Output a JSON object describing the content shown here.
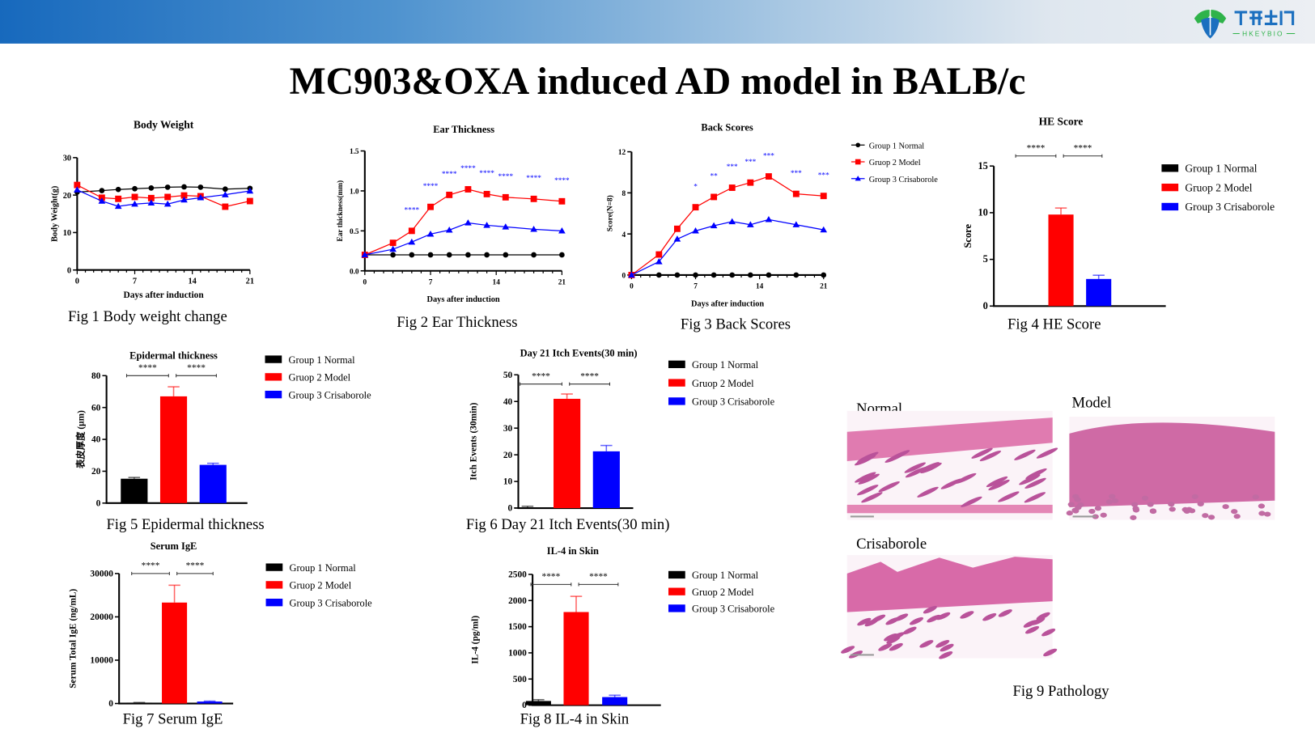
{
  "header": {
    "logo_text_cn": "禾开生物",
    "logo_text_en": "HKEYBIO",
    "gradient_colors": [
      "#1769bd",
      "#eceff3"
    ]
  },
  "slide_title": "MC903&OXA induced AD model in BALB/c",
  "groups": [
    "Group 1 Normal",
    "Gruop 2 Model",
    "Group 3 Crisaborole"
  ],
  "group_colors": [
    "#000000",
    "#ff0000",
    "#0000ff"
  ],
  "chart_data": [
    {
      "type": "line",
      "title": "Body Weight",
      "xlabel": "Days after induction",
      "ylabel": "Body Weight(g)",
      "xlim": [
        0,
        21
      ],
      "ylim": [
        0,
        30
      ],
      "xticks": [
        0,
        7,
        14,
        21
      ],
      "xtick_labels": [
        "0",
        "7",
        "14",
        "21"
      ],
      "yticks": [
        0,
        10,
        20,
        30
      ],
      "ytick_labels": [
        "0",
        "10",
        "20",
        "30"
      ],
      "x": [
        0,
        3,
        5,
        7,
        9,
        11,
        13,
        15,
        18,
        21
      ],
      "series": [
        {
          "name": "Group 1 Normal",
          "marker": "circle",
          "values": [
            20.8,
            21.2,
            21.5,
            21.7,
            21.9,
            22.1,
            22.2,
            22.1,
            21.6,
            21.8
          ]
        },
        {
          "name": "Gruop 2 Model",
          "marker": "square",
          "values": [
            22.7,
            19.3,
            19.0,
            19.5,
            19.2,
            19.5,
            19.9,
            19.7,
            16.9,
            18.4
          ]
        },
        {
          "name": "Group 3 Crisaborole",
          "marker": "triangle",
          "values": [
            21.4,
            18.4,
            17.0,
            17.6,
            17.9,
            17.6,
            18.7,
            19.3,
            20.1,
            21.1
          ]
        }
      ],
      "annotations": [],
      "legend": false,
      "caption": "Fig 1 Body  weight change"
    },
    {
      "type": "line",
      "title": "Ear Thickness",
      "xlabel": "Days after induction",
      "ylabel": "Ear thickness(mm)",
      "xlim": [
        0,
        21
      ],
      "ylim": [
        0,
        1.5
      ],
      "xticks": [
        0,
        7,
        14,
        21
      ],
      "xtick_labels": [
        "0",
        "7",
        "14",
        "21"
      ],
      "yticks": [
        0,
        0.5,
        1.0,
        1.5
      ],
      "ytick_labels": [
        "0.0",
        "0.5",
        "1.0",
        "1.5"
      ],
      "x": [
        0,
        3,
        5,
        7,
        9,
        11,
        13,
        15,
        18,
        21
      ],
      "series": [
        {
          "name": "Group 1 Normal",
          "marker": "circle",
          "values": [
            0.2,
            0.2,
            0.2,
            0.2,
            0.2,
            0.2,
            0.2,
            0.2,
            0.2,
            0.2
          ]
        },
        {
          "name": "Gruop 2 Model",
          "marker": "square",
          "values": [
            0.2,
            0.35,
            0.5,
            0.8,
            0.95,
            1.02,
            0.96,
            0.92,
            0.9,
            0.87
          ]
        },
        {
          "name": "Group 3 Crisaborole",
          "marker": "triangle",
          "values": [
            0.2,
            0.27,
            0.36,
            0.46,
            0.51,
            0.6,
            0.57,
            0.55,
            0.52,
            0.5
          ]
        }
      ],
      "annotations": [
        {
          "x": 5,
          "label": "****"
        },
        {
          "x": 7,
          "label": "****"
        },
        {
          "x": 9,
          "label": "****"
        },
        {
          "x": 11,
          "label": "****"
        },
        {
          "x": 13,
          "label": "****"
        },
        {
          "x": 15,
          "label": "****"
        },
        {
          "x": 18,
          "label": "****"
        },
        {
          "x": 21,
          "label": "****"
        }
      ],
      "legend": false,
      "caption": "Fig 2 Ear Thickness"
    },
    {
      "type": "line",
      "title": "Back Scores",
      "xlabel": "Days after induction",
      "ylabel": "Score(N=8)",
      "xlim": [
        0,
        21
      ],
      "ylim": [
        0,
        12
      ],
      "xticks": [
        0,
        7,
        14,
        21
      ],
      "xtick_labels": [
        "0",
        "7",
        "14",
        "21"
      ],
      "yticks": [
        0,
        4,
        8,
        12
      ],
      "ytick_labels": [
        "0",
        "4",
        "8",
        "12"
      ],
      "x": [
        0,
        3,
        5,
        7,
        9,
        11,
        13,
        15,
        18,
        21
      ],
      "series": [
        {
          "name": "Group 1 Normal",
          "marker": "circle",
          "values": [
            0,
            0,
            0,
            0,
            0,
            0,
            0,
            0,
            0,
            0
          ]
        },
        {
          "name": "Gruop 2 Model",
          "marker": "square",
          "values": [
            0,
            2.0,
            4.5,
            6.6,
            7.6,
            8.5,
            9.0,
            9.6,
            7.9,
            7.7
          ]
        },
        {
          "name": "Group 3 Crisaborole",
          "marker": "triangle",
          "values": [
            0,
            1.3,
            3.5,
            4.3,
            4.8,
            5.2,
            4.9,
            5.4,
            4.9,
            4.4
          ]
        }
      ],
      "annotations": [
        {
          "x": 7,
          "label": "*"
        },
        {
          "x": 9,
          "label": "**"
        },
        {
          "x": 11,
          "label": "***"
        },
        {
          "x": 13,
          "label": "***"
        },
        {
          "x": 15,
          "label": "***"
        },
        {
          "x": 18,
          "label": "***"
        },
        {
          "x": 21,
          "label": "***"
        }
      ],
      "legend": true,
      "caption": "Fig 3 Back Scores"
    },
    {
      "type": "bar",
      "title": "HE Score",
      "ylabel": "Score",
      "categories": [
        "Group 1 Normal",
        "Gruop 2 Model",
        "Group 3 Crisaborole"
      ],
      "values": [
        0,
        9.8,
        2.9
      ],
      "errors": [
        0,
        0.7,
        0.4
      ],
      "ylim": [
        0,
        15
      ],
      "yticks": [
        0,
        5,
        10,
        15
      ],
      "ytick_labels": [
        "0",
        "5",
        "10",
        "15"
      ],
      "comparisons": [
        {
          "from": 0,
          "to": 1,
          "label": "****"
        },
        {
          "from": 1,
          "to": 2,
          "label": "****"
        }
      ],
      "legend": true,
      "caption": "Fig 4 HE Score"
    },
    {
      "type": "bar",
      "title": "Epidermal thickness",
      "ylabel": "表皮厚度 (μm)",
      "categories": [
        "Group 1 Normal",
        "Gruop 2 Model",
        "Group 3 Crisaborole"
      ],
      "values": [
        15.3,
        67,
        24
      ],
      "errors": [
        0.8,
        6,
        1
      ],
      "ylim": [
        0,
        80
      ],
      "yticks": [
        0,
        20,
        40,
        60,
        80
      ],
      "ytick_labels": [
        "0",
        "20",
        "40",
        "60",
        "80"
      ],
      "comparisons": [
        {
          "from": 0,
          "to": 1,
          "label": "****"
        },
        {
          "from": 1,
          "to": 2,
          "label": "****"
        }
      ],
      "legend": true,
      "caption": "Fig 5 Epidermal thickness"
    },
    {
      "type": "bar",
      "title": "Day 21 Itch Events(30 min)",
      "ylabel": "Itch Events (30min)",
      "categories": [
        "Group 1 Normal",
        "Gruop 2 Model",
        "Group 3 Crisaborole"
      ],
      "values": [
        0.3,
        41,
        21.3
      ],
      "errors": [
        0.4,
        1.8,
        2.2
      ],
      "ylim": [
        0,
        50
      ],
      "yticks": [
        0,
        10,
        20,
        30,
        40,
        50
      ],
      "ytick_labels": [
        "0",
        "10",
        "20",
        "30",
        "40",
        "50"
      ],
      "comparisons": [
        {
          "from": 0,
          "to": 1,
          "label": "****"
        },
        {
          "from": 1,
          "to": 2,
          "label": "****"
        }
      ],
      "legend": true,
      "caption": "Fig 6 Day 21 Itch Events(30 min)"
    },
    {
      "type": "bar",
      "title": "Serum IgE",
      "ylabel": "Serum Total IgE (ng/mL)",
      "categories": [
        "Group 1 Normal",
        "Gruop 2 Model",
        "Group 3 Crisaborole"
      ],
      "values": [
        200,
        23300,
        450
      ],
      "errors": [
        30,
        4000,
        100
      ],
      "ylim": [
        0,
        30000
      ],
      "yticks": [
        0,
        10000,
        20000,
        30000
      ],
      "ytick_labels": [
        "0",
        "10000",
        "20000",
        "30000"
      ],
      "comparisons": [
        {
          "from": 0,
          "to": 1,
          "label": "****"
        },
        {
          "from": 1,
          "to": 2,
          "label": "****"
        }
      ],
      "legend": true,
      "caption": "Fig 7 Serum IgE"
    },
    {
      "type": "bar",
      "title": "IL-4 in Skin",
      "ylabel": "IL-4 (pg/ml)",
      "categories": [
        "Group 1 Normal",
        "Gruop 2 Model",
        "Group 3 Crisaborole"
      ],
      "values": [
        80,
        1780,
        155
      ],
      "errors": [
        25,
        300,
        35
      ],
      "ylim": [
        0,
        2500
      ],
      "yticks": [
        0,
        500,
        1000,
        1500,
        2000,
        2500
      ],
      "ytick_labels": [
        "0",
        "500",
        "1000",
        "1500",
        "2000",
        "2500"
      ],
      "comparisons": [
        {
          "from": 0,
          "to": 1,
          "label": "****"
        },
        {
          "from": 1,
          "to": 2,
          "label": "****"
        }
      ],
      "legend": true,
      "caption": "Fig 8 IL-4 in Skin"
    }
  ],
  "pathology": {
    "panels": [
      {
        "label": "Normal",
        "tissue": "normal"
      },
      {
        "label": "Model",
        "tissue": "model"
      },
      {
        "label": "Crisaborole",
        "tissue": "crisaborole"
      }
    ],
    "caption": "Fig 9 Pathology"
  }
}
